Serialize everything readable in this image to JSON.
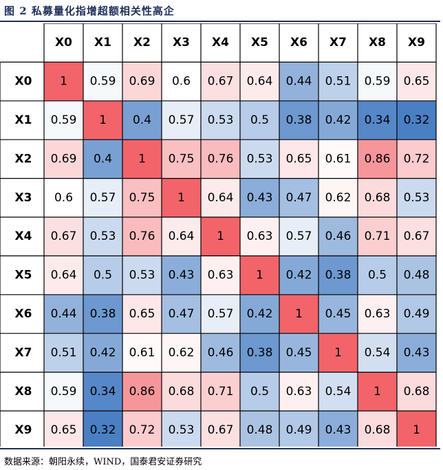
{
  "figure": {
    "title": "图 2 私募量化指增超额相关性高企",
    "source": "数据来源：朝阳永续，WIND，国泰君安证券研究"
  },
  "colors": {
    "high": "#f2646a",
    "low": "#4a7fc4",
    "mid": "#ffffff",
    "border": "#000000"
  },
  "chart_data": {
    "type": "heatmap",
    "title": "图 2 私募量化指增超额相关性高企",
    "row_labels": [
      "X0",
      "X1",
      "X2",
      "X3",
      "X4",
      "X5",
      "X6",
      "X7",
      "X8",
      "X9"
    ],
    "col_labels": [
      "X0",
      "X1",
      "X2",
      "X3",
      "X4",
      "X5",
      "X6",
      "X7",
      "X8",
      "X9"
    ],
    "values": [
      [
        1,
        0.59,
        0.69,
        0.6,
        0.67,
        0.64,
        0.44,
        0.51,
        0.59,
        0.65
      ],
      [
        0.59,
        1,
        0.4,
        0.57,
        0.53,
        0.5,
        0.38,
        0.42,
        0.34,
        0.32
      ],
      [
        0.69,
        0.4,
        1,
        0.75,
        0.76,
        0.53,
        0.65,
        0.61,
        0.86,
        0.72
      ],
      [
        0.6,
        0.57,
        0.75,
        1,
        0.64,
        0.43,
        0.47,
        0.62,
        0.68,
        0.53
      ],
      [
        0.67,
        0.53,
        0.76,
        0.64,
        1,
        0.63,
        0.57,
        0.46,
        0.71,
        0.67
      ],
      [
        0.64,
        0.5,
        0.53,
        0.43,
        0.63,
        1,
        0.42,
        0.38,
        0.5,
        0.48
      ],
      [
        0.44,
        0.38,
        0.65,
        0.47,
        0.57,
        0.42,
        1,
        0.45,
        0.63,
        0.49
      ],
      [
        0.51,
        0.42,
        0.61,
        0.62,
        0.46,
        0.38,
        0.45,
        1,
        0.54,
        0.43
      ],
      [
        0.59,
        0.34,
        0.86,
        0.68,
        0.71,
        0.5,
        0.63,
        0.54,
        1,
        0.68
      ],
      [
        0.65,
        0.32,
        0.72,
        0.53,
        0.67,
        0.48,
        0.49,
        0.43,
        0.68,
        1
      ]
    ],
    "color_scale": {
      "low": 0.32,
      "mid": 0.6,
      "high": 1
    }
  }
}
